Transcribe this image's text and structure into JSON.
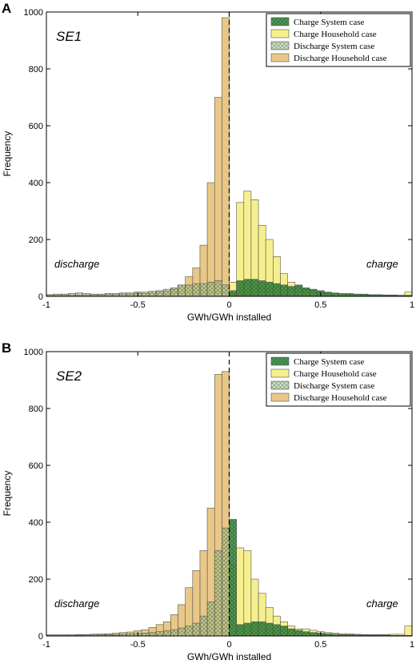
{
  "colors": {
    "charge_system": "#2e8b3c",
    "charge_household": "#f5ec7a",
    "discharge_system": "#9cc99a",
    "discharge_household": "#e7c27a",
    "edge": "#555555"
  },
  "legend": [
    {
      "label": "Charge System case",
      "style": "charge_system"
    },
    {
      "label": "Charge Household case",
      "style": "charge_household"
    },
    {
      "label": "Discharge System case",
      "style": "discharge_system"
    },
    {
      "label": "Discharge Household case",
      "style": "discharge_household"
    }
  ],
  "chart_data": [
    {
      "type": "bar",
      "panel_label": "A",
      "case_label": "SE1",
      "xlabel": "GWh/GWh installed",
      "ylabel": "Frequency",
      "xlim": [
        -1,
        1
      ],
      "ylim": [
        0,
        1000
      ],
      "xticks": [
        "-1",
        "-0.5",
        "0",
        "0.5",
        "1"
      ],
      "yticks": [
        "0",
        "200",
        "400",
        "600",
        "800",
        "1000"
      ],
      "left_annotation": "discharge",
      "right_annotation": "charge",
      "legend_position": "top-right",
      "dashed_line_x": 0,
      "bin_width": 0.04,
      "series": [
        {
          "name": "Charge System case",
          "style": "charge_system",
          "x": [
            0.0,
            0.04,
            0.08,
            0.12,
            0.16,
            0.2,
            0.24,
            0.28,
            0.32,
            0.36,
            0.4,
            0.44,
            0.48,
            0.52,
            0.56,
            0.6,
            0.64,
            0.68,
            0.72,
            0.76,
            0.8,
            0.84,
            0.88,
            0.92,
            0.96
          ],
          "values": [
            20,
            55,
            60,
            60,
            55,
            50,
            45,
            40,
            35,
            40,
            30,
            25,
            20,
            15,
            12,
            10,
            10,
            8,
            8,
            6,
            6,
            5,
            5,
            4,
            4
          ]
        },
        {
          "name": "Charge Household case",
          "style": "charge_household",
          "x": [
            0.0,
            0.04,
            0.08,
            0.12,
            0.16,
            0.2,
            0.24,
            0.28,
            0.32,
            0.36,
            0.4,
            0.44,
            0.48,
            0.52,
            0.56,
            0.6,
            0.64,
            0.68,
            0.72,
            0.76,
            0.8,
            0.84,
            0.88,
            0.92,
            0.96
          ],
          "values": [
            50,
            330,
            370,
            340,
            250,
            200,
            140,
            80,
            50,
            35,
            25,
            20,
            15,
            12,
            10,
            8,
            8,
            6,
            5,
            5,
            5,
            4,
            4,
            3,
            15
          ]
        },
        {
          "name": "Discharge System case",
          "style": "discharge_system",
          "x": [
            -0.04,
            -0.08,
            -0.12,
            -0.16,
            -0.2,
            -0.24,
            -0.28,
            -0.32,
            -0.36,
            -0.4,
            -0.44,
            -0.48,
            -0.52,
            -0.56,
            -0.6,
            -0.64,
            -0.68,
            -0.72,
            -0.76,
            -0.8,
            -0.84,
            -0.88,
            -0.92,
            -0.96,
            -1.0
          ],
          "values": [
            40,
            55,
            50,
            45,
            45,
            40,
            40,
            30,
            25,
            20,
            18,
            15,
            15,
            12,
            12,
            10,
            10,
            8,
            8,
            10,
            12,
            10,
            8,
            8,
            6
          ]
        },
        {
          "name": "Discharge Household case",
          "style": "discharge_household",
          "x": [
            -0.04,
            -0.08,
            -0.12,
            -0.16,
            -0.2,
            -0.24,
            -0.28,
            -0.32,
            -0.36,
            -0.4,
            -0.44,
            -0.48,
            -0.52,
            -0.56,
            -0.6,
            -0.64,
            -0.68,
            -0.72,
            -0.76,
            -0.8,
            -0.84,
            -0.88,
            -0.92,
            -0.96,
            -1.0
          ],
          "values": [
            980,
            700,
            400,
            180,
            100,
            70,
            40,
            25,
            18,
            15,
            12,
            10,
            10,
            8,
            8,
            6,
            6,
            5,
            5,
            5,
            5,
            4,
            4,
            4,
            4
          ]
        }
      ]
    },
    {
      "type": "bar",
      "panel_label": "B",
      "case_label": "SE2",
      "xlabel": "GWh/GWh installed",
      "ylabel": "Frequency",
      "xlim": [
        -1,
        1
      ],
      "ylim": [
        0,
        1000
      ],
      "xticks": [
        "-1",
        "-0.5",
        "0",
        "0.5",
        "1"
      ],
      "yticks": [
        "0",
        "200",
        "400",
        "600",
        "800",
        "1000"
      ],
      "left_annotation": "discharge",
      "right_annotation": "charge",
      "legend_position": "top-right",
      "dashed_line_x": 0,
      "bin_width": 0.04,
      "series": [
        {
          "name": "Charge System case",
          "style": "charge_system",
          "x": [
            0.0,
            0.04,
            0.08,
            0.12,
            0.16,
            0.2,
            0.24,
            0.28,
            0.32,
            0.36,
            0.4,
            0.44,
            0.48,
            0.52,
            0.56,
            0.6,
            0.64,
            0.68,
            0.72,
            0.76,
            0.8,
            0.84,
            0.88,
            0.92,
            0.96
          ],
          "values": [
            410,
            40,
            45,
            50,
            50,
            45,
            40,
            35,
            25,
            20,
            15,
            12,
            10,
            8,
            6,
            5,
            5,
            4,
            4,
            3,
            3,
            3,
            2,
            2,
            2
          ]
        },
        {
          "name": "Charge Household case",
          "style": "charge_household",
          "x": [
            0.0,
            0.04,
            0.08,
            0.12,
            0.16,
            0.2,
            0.24,
            0.28,
            0.32,
            0.36,
            0.4,
            0.44,
            0.48,
            0.52,
            0.56,
            0.6,
            0.64,
            0.68,
            0.72,
            0.76,
            0.8,
            0.84,
            0.88,
            0.92,
            0.96
          ],
          "values": [
            250,
            310,
            300,
            200,
            150,
            100,
            70,
            50,
            35,
            25,
            25,
            20,
            15,
            12,
            10,
            8,
            8,
            6,
            5,
            5,
            5,
            5,
            6,
            6,
            35
          ]
        },
        {
          "name": "Discharge System case",
          "style": "discharge_system",
          "x": [
            -0.04,
            -0.08,
            -0.12,
            -0.16,
            -0.2,
            -0.24,
            -0.28,
            -0.32,
            -0.36,
            -0.4,
            -0.44,
            -0.48,
            -0.52,
            -0.56,
            -0.6,
            -0.64,
            -0.68,
            -0.72,
            -0.76,
            -0.8,
            -0.84,
            -0.88,
            -0.92,
            -0.96,
            -1.0
          ],
          "values": [
            380,
            300,
            120,
            70,
            45,
            35,
            28,
            22,
            18,
            15,
            12,
            10,
            8,
            7,
            6,
            5,
            5,
            4,
            4,
            4,
            3,
            3,
            3,
            3,
            3
          ]
        },
        {
          "name": "Discharge Household case",
          "style": "discharge_household",
          "x": [
            -0.04,
            -0.08,
            -0.12,
            -0.16,
            -0.2,
            -0.24,
            -0.28,
            -0.32,
            -0.36,
            -0.4,
            -0.44,
            -0.48,
            -0.52,
            -0.56,
            -0.6,
            -0.64,
            -0.68,
            -0.72,
            -0.76,
            -0.8,
            -0.84,
            -0.88,
            -0.92,
            -0.96,
            -1.0
          ],
          "values": [
            930,
            920,
            450,
            300,
            230,
            170,
            110,
            75,
            50,
            40,
            30,
            22,
            18,
            14,
            12,
            10,
            8,
            7,
            6,
            5,
            5,
            4,
            4,
            4,
            4
          ]
        }
      ]
    }
  ]
}
